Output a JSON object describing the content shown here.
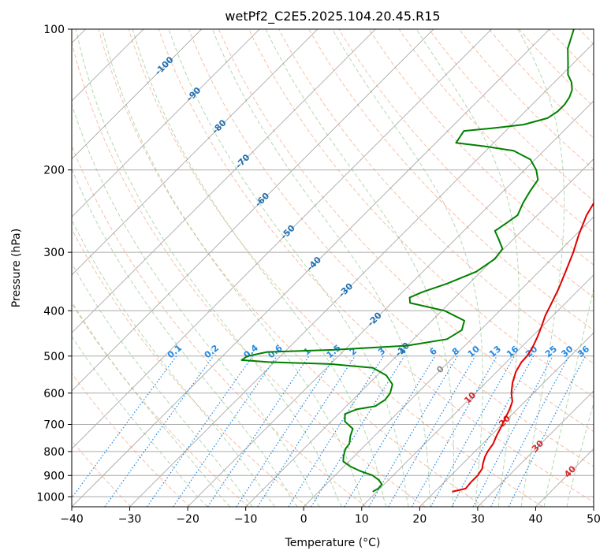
{
  "chart_data": {
    "type": "skew-t log-p diagram",
    "title": "wetPf2_C2E5.2025.104.20.45.R15",
    "xlabel": "Temperature (°C)",
    "ylabel": "Pressure (hPa)",
    "xlim": [
      -40,
      50
    ],
    "ylim": [
      1050,
      100
    ],
    "y_scale": "log",
    "x_ticks": [
      -40,
      -30,
      -20,
      -10,
      0,
      10,
      20,
      30,
      40,
      50
    ],
    "x_tick_labels": [
      "−40",
      "−30",
      "−20",
      "−10",
      "0",
      "10",
      "20",
      "30",
      "40",
      "50"
    ],
    "y_ticks": [
      1000,
      900,
      800,
      700,
      600,
      500,
      400,
      300,
      200,
      100
    ],
    "y_tick_labels": [
      "1000",
      "900",
      "800",
      "700",
      "600",
      "500",
      "400",
      "300",
      "200",
      "100"
    ],
    "grid": true,
    "colors": {
      "temperature": "#e00000",
      "dewpoint": "#008000",
      "isotherm_label": "#1f6fb0",
      "mixing_ratio": "#1e88e5",
      "dry_adiabat": "#f4a582",
      "moist_adiabat": "#7fbf7b",
      "grid": "#aaaaaa",
      "skewed_isotherm": "#888888",
      "warm_label": "#d62728"
    },
    "series": [
      {
        "kind": "temperature",
        "points": [
          [
            23,
            975
          ],
          [
            24.8,
            960
          ],
          [
            24.6,
            930
          ],
          [
            24.6,
            900
          ],
          [
            24.2,
            870
          ],
          [
            23.5,
            850
          ],
          [
            22.6,
            820
          ],
          [
            22.2,
            800
          ],
          [
            21.8,
            770
          ],
          [
            21.0,
            740
          ],
          [
            20.3,
            710
          ],
          [
            19.5,
            680
          ],
          [
            18.7,
            650
          ],
          [
            17.8,
            625
          ],
          [
            16.2,
            600
          ],
          [
            14.6,
            570
          ],
          [
            13.3,
            540
          ],
          [
            12.6,
            515
          ],
          [
            12.5,
            500
          ],
          [
            12.0,
            480
          ],
          [
            11.0,
            455
          ],
          [
            9.8,
            430
          ],
          [
            8.7,
            410
          ],
          [
            7.6,
            385
          ],
          [
            6.4,
            360
          ],
          [
            4.6,
            330
          ],
          [
            2.6,
            300
          ],
          [
            0.5,
            275
          ],
          [
            -1.5,
            250
          ],
          [
            -2.7,
            230
          ],
          [
            -3.4,
            215
          ],
          [
            -3.0,
            205
          ],
          [
            -0.8,
            195
          ],
          [
            3.0,
            185
          ],
          [
            6.6,
            175
          ],
          [
            8.8,
            165
          ],
          [
            10.0,
            155
          ],
          [
            10.8,
            145
          ],
          [
            11.8,
            135
          ],
          [
            12.8,
            125
          ],
          [
            13.8,
            116
          ],
          [
            14.6,
            108
          ],
          [
            15.2,
            100
          ]
        ]
      },
      {
        "kind": "dewpoint",
        "points": [
          [
            9.3,
            975
          ],
          [
            9.7,
            960
          ],
          [
            9.6,
            940
          ],
          [
            8.3,
            920
          ],
          [
            6.5,
            900
          ],
          [
            3.5,
            880
          ],
          [
            1.0,
            860
          ],
          [
            -1.0,
            840
          ],
          [
            -1.8,
            820
          ],
          [
            -2.8,
            790
          ],
          [
            -3.0,
            770
          ],
          [
            -4.2,
            740
          ],
          [
            -5.0,
            715
          ],
          [
            -7.6,
            690
          ],
          [
            -8.9,
            665
          ],
          [
            -7.7,
            650
          ],
          [
            -5.0,
            640
          ],
          [
            -4.4,
            620
          ],
          [
            -4.7,
            600
          ],
          [
            -5.8,
            575
          ],
          [
            -8.4,
            550
          ],
          [
            -12.0,
            530
          ],
          [
            -20.0,
            520
          ],
          [
            -31.0,
            515
          ],
          [
            -36.0,
            510
          ],
          [
            -35.7,
            500
          ],
          [
            -33.0,
            490
          ],
          [
            -22.0,
            485
          ],
          [
            -10.0,
            475
          ],
          [
            -4.2,
            460
          ],
          [
            -3.2,
            440
          ],
          [
            -4.4,
            420
          ],
          [
            -9.5,
            400
          ],
          [
            -16.8,
            385
          ],
          [
            -17.8,
            375
          ],
          [
            -16.6,
            365
          ],
          [
            -13.8,
            350
          ],
          [
            -10.8,
            330
          ],
          [
            -9.8,
            310
          ],
          [
            -10.2,
            295
          ],
          [
            -12.4,
            282
          ],
          [
            -14.6,
            270
          ],
          [
            -14.0,
            260
          ],
          [
            -13.4,
            250
          ],
          [
            -14.6,
            235
          ],
          [
            -15.4,
            222
          ],
          [
            -16.0,
            210
          ],
          [
            -18.0,
            200
          ],
          [
            -20.8,
            190
          ],
          [
            -25.2,
            182
          ],
          [
            -31.0,
            178
          ],
          [
            -36.5,
            175
          ],
          [
            -37.0,
            168
          ],
          [
            -37.2,
            165
          ],
          [
            -33.0,
            163
          ],
          [
            -28.0,
            160
          ],
          [
            -25.0,
            155
          ],
          [
            -24.4,
            150
          ],
          [
            -24.4,
            145
          ],
          [
            -24.8,
            140
          ],
          [
            -25.6,
            135
          ],
          [
            -27.0,
            130
          ],
          [
            -29.0,
            125
          ],
          [
            -31.0,
            118
          ],
          [
            -33.5,
            110
          ],
          [
            -35.8,
            100
          ]
        ]
      }
    ],
    "isotherm_labels": [
      {
        "text": "-100",
        "t": -100
      },
      {
        "text": "-90",
        "t": -90
      },
      {
        "text": "-80",
        "t": -80
      },
      {
        "text": "-70",
        "t": -70
      },
      {
        "text": "-60",
        "t": -60
      },
      {
        "text": "-50",
        "t": -50
      },
      {
        "text": "-40",
        "t": -40
      },
      {
        "text": "-30",
        "t": -30
      },
      {
        "text": "-20",
        "t": -20
      },
      {
        "text": "-10",
        "t": -10
      },
      {
        "text": "0",
        "t": 0
      },
      {
        "text": "10",
        "t": 10
      },
      {
        "text": "20",
        "t": 20
      },
      {
        "text": "30",
        "t": 30
      },
      {
        "text": "40",
        "t": 40
      }
    ],
    "mixing_ratio_labels": [
      "0.1",
      "0.2",
      "0.4",
      "0.6",
      "1",
      "1.5",
      "2",
      "3",
      "4",
      "6",
      "8",
      "10",
      "13",
      "16",
      "20",
      "25",
      "30",
      "36"
    ],
    "mixing_ratio_values": [
      0.1,
      0.2,
      0.4,
      0.6,
      1,
      1.5,
      2,
      3,
      4,
      6,
      8,
      10,
      13,
      16,
      20,
      25,
      30,
      36
    ]
  }
}
